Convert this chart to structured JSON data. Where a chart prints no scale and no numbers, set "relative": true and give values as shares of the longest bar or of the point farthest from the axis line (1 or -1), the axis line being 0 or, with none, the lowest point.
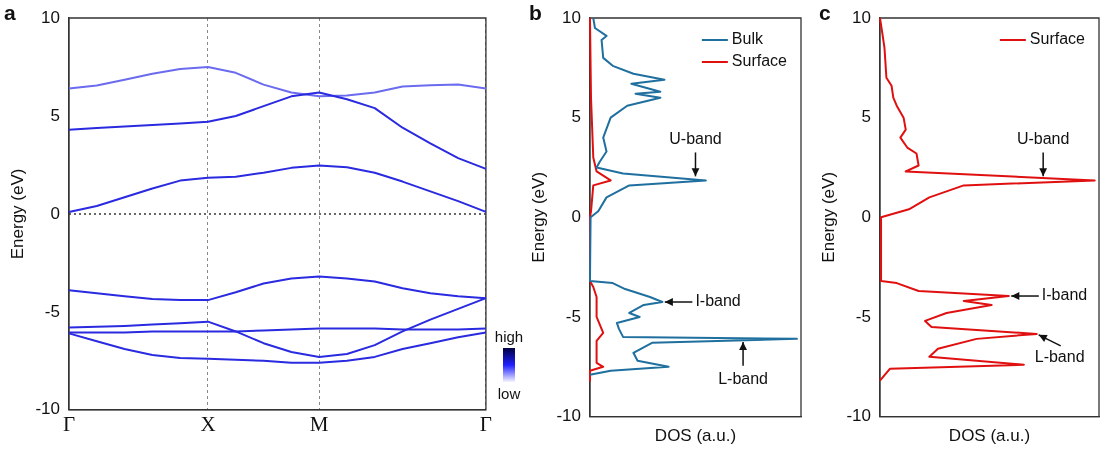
{
  "chart_data": [
    {
      "type": "line",
      "title": "a",
      "ylabel": "Energy (eV)",
      "categories": [
        "Γ",
        null,
        null,
        null,
        null,
        "X",
        null,
        null,
        null,
        "M",
        null,
        null,
        null,
        null,
        null,
        "Γ"
      ],
      "ylim": [
        -10,
        10
      ],
      "yticks": [
        -10,
        -5,
        0,
        5,
        10
      ],
      "grid": "x",
      "ref_lines": [
        {
          "axis": "y",
          "value": 0,
          "line_style": "dotted",
          "color": "#333333"
        }
      ],
      "annotations": [
        "high",
        "low"
      ],
      "series": [
        {
          "color": "#2a2ae0",
          "values": [
            0.1,
            0.4,
            0.85,
            1.3,
            1.7,
            1.85,
            1.9,
            2.1,
            2.35,
            2.47,
            2.38,
            2.1,
            1.65,
            1.15,
            0.65,
            0.1
          ]
        },
        {
          "color": "#2a2ae0",
          "values": [
            4.3,
            4.38,
            4.46,
            4.54,
            4.62,
            4.7,
            5.0,
            5.5,
            6.0,
            6.2,
            5.85,
            5.4,
            4.4,
            3.6,
            2.85,
            2.3
          ]
        },
        {
          "color": "#6b6bf0",
          "values": [
            6.4,
            6.55,
            6.85,
            7.15,
            7.4,
            7.5,
            7.2,
            6.6,
            6.2,
            6.0,
            6.05,
            6.2,
            6.5,
            6.57,
            6.6,
            6.4
          ]
        },
        {
          "color": "#2a2ae0",
          "values": [
            -3.9,
            -4.05,
            -4.2,
            -4.35,
            -4.4,
            -4.4,
            -4.0,
            -3.55,
            -3.3,
            -3.2,
            -3.3,
            -3.45,
            -3.8,
            -4.05,
            -4.2,
            -4.3
          ]
        },
        {
          "color": "#2a2ae0",
          "values": [
            -5.8,
            -5.76,
            -5.72,
            -5.65,
            -5.58,
            -5.5,
            -6.0,
            -6.6,
            -7.05,
            -7.3,
            -7.15,
            -6.7,
            -6.0,
            -5.4,
            -4.85,
            -4.3
          ]
        },
        {
          "color": "#2a2ae0",
          "values": [
            -6.05,
            -6.05,
            -6.05,
            -6.0,
            -6.0,
            -6.0,
            -6.0,
            -5.95,
            -5.9,
            -5.85,
            -5.85,
            -5.85,
            -5.9,
            -5.9,
            -5.9,
            -5.85
          ]
        },
        {
          "color": "#2a2ae0",
          "values": [
            -6.1,
            -6.5,
            -6.9,
            -7.2,
            -7.35,
            -7.4,
            -7.45,
            -7.5,
            -7.6,
            -7.6,
            -7.5,
            -7.3,
            -6.9,
            -6.6,
            -6.3,
            -6.05
          ]
        }
      ]
    },
    {
      "type": "line",
      "title": "b",
      "ylabel": "Energy (eV)",
      "xlabel": "DOS (a.u.)",
      "orientation": "horizontal",
      "relative": true,
      "ylim": [
        -10,
        10
      ],
      "yticks": [
        -10,
        -5,
        0,
        5,
        10
      ],
      "legend": "top right",
      "annotations": [
        {
          "text": "U-band",
          "x": 0.51,
          "y": 1.95
        },
        {
          "text": "I-band",
          "x": 0.35,
          "y": -4.25
        },
        {
          "text": "L-band",
          "x": 0.74,
          "y": -6.15
        }
      ],
      "series": [
        {
          "name": "Bulk",
          "color": "#1f6f9f",
          "x": [
            10,
            9.5,
            9.1,
            8.9,
            8,
            7.6,
            7.2,
            6.9,
            6.7,
            6.3,
            6.2,
            6.0,
            5.6,
            5.0,
            4.0,
            3.3,
            2.8,
            2.5,
            2.2,
            1.85,
            1.6,
            1.0,
            0.3,
            0,
            -3.2,
            -3.3,
            -3.6,
            -4.0,
            -4.25,
            -4.4,
            -4.8,
            -5.0,
            -5.3,
            -5.6,
            -6.0,
            -6.1,
            -6.3,
            -6.8,
            -7.2,
            -7.5,
            -7.7,
            -7.9
          ],
          "values": [
            0.016,
            0.024,
            0.08,
            0.056,
            0.064,
            0.11,
            0.21,
            0.36,
            0.2,
            0.34,
            0.22,
            0.34,
            0.18,
            0.1,
            0.064,
            0.08,
            0.048,
            0.032,
            0.16,
            0.56,
            0.19,
            0.08,
            0.04,
            0.003,
            0,
            0.11,
            0.17,
            0.29,
            0.35,
            0.26,
            0.19,
            0.24,
            0.13,
            0.14,
            0.16,
            1,
            0.3,
            0.21,
            0.23,
            0.38,
            0.1,
            0
          ]
        },
        {
          "name": "Surface",
          "color": "#e01010",
          "x": [
            10,
            6,
            3,
            2.3,
            1.85,
            1.6,
            0.3,
            0,
            -3.2,
            -3.5,
            -4.0,
            -5.0,
            -5.8,
            -6.2,
            -7.3,
            -7.5,
            -7.7,
            -8.2
          ],
          "values": [
            0,
            0.005,
            0.016,
            0.032,
            0.1,
            0.016,
            0.005,
            0,
            0,
            0.016,
            0.032,
            0.032,
            0.064,
            0.032,
            0.032,
            0.064,
            0,
            0
          ]
        }
      ]
    },
    {
      "type": "line",
      "title": "c",
      "ylabel": "Energy (eV)",
      "xlabel": "DOS (a.u.)",
      "orientation": "horizontal",
      "relative": true,
      "ylim": [
        -10,
        10
      ],
      "yticks": [
        -10,
        -5,
        0,
        5,
        10
      ],
      "legend": "top right",
      "annotations": [
        {
          "text": "U-band",
          "x": 0.76,
          "y": 1.95
        },
        {
          "text": "I-band",
          "x": 0.6,
          "y": -3.95
        },
        {
          "text": "L-band",
          "x": 0.73,
          "y": -5.85
        }
      ],
      "series": [
        {
          "name": "Surface",
          "color": "#e01010",
          "x": [
            10,
            9.3,
            8.5,
            7.0,
            6.6,
            6.0,
            5.6,
            5.0,
            4.4,
            4.0,
            3.5,
            3.2,
            2.6,
            2.3,
            1.85,
            1.6,
            1.0,
            0.4,
            0,
            -3.2,
            -3.3,
            -3.7,
            -3.95,
            -4.2,
            -4.4,
            -4.8,
            -5.2,
            -5.5,
            -5.85,
            -6.1,
            -6.6,
            -7.0,
            -7.4,
            -7.6,
            -8.2
          ],
          "values": [
            0,
            0.01,
            0.021,
            0.03,
            0.054,
            0.062,
            0.078,
            0.11,
            0.12,
            0.095,
            0.127,
            0.17,
            0.18,
            0.12,
            1,
            0.39,
            0.23,
            0.135,
            0.005,
            0.005,
            0.078,
            0.18,
            0.6,
            0.39,
            0.52,
            0.31,
            0.21,
            0.24,
            0.73,
            0.45,
            0.27,
            0.23,
            0.67,
            0.046,
            0
          ]
        }
      ]
    }
  ]
}
